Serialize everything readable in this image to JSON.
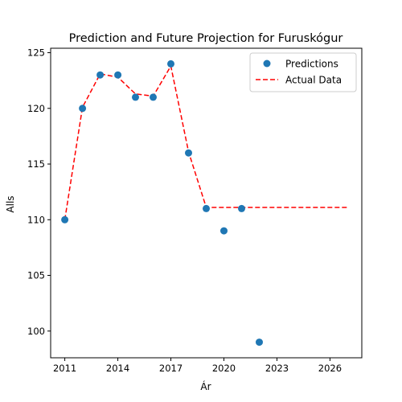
{
  "chart_data": {
    "type": "scatter",
    "title": "Prediction and Future Projection for Furuskógur",
    "xlabel": "Ár",
    "ylabel": "Alls",
    "xlim": [
      2010.2,
      2027.8
    ],
    "ylim": [
      97.6,
      125.4
    ],
    "xticks": [
      2011,
      2014,
      2017,
      2020,
      2023,
      2026
    ],
    "yticks": [
      100,
      105,
      110,
      115,
      120,
      125
    ],
    "grid": false,
    "legend_position": "top-right",
    "series": [
      {
        "name": "Predictions",
        "kind": "scatter",
        "color": "#1f77b4",
        "x": [
          2011,
          2012,
          2013,
          2014,
          2015,
          2016,
          2017,
          2018,
          2019,
          2020,
          2021,
          2022
        ],
        "y": [
          110,
          120,
          123,
          123,
          121,
          121,
          124,
          116,
          111,
          109,
          111,
          99
        ]
      },
      {
        "name": "Actual Data",
        "kind": "line",
        "style": "dashed",
        "color": "#ff0000",
        "x": [
          2011,
          2012,
          2013,
          2014,
          2015,
          2016,
          2017,
          2018,
          2019,
          2020,
          2021,
          2022,
          2023,
          2024,
          2025,
          2026,
          2027
        ],
        "y": [
          110,
          120.1,
          123.1,
          122.8,
          121.3,
          121.1,
          123.8,
          116.1,
          111.1,
          111.1,
          111.1,
          111.1,
          111.1,
          111.1,
          111.1,
          111.1,
          111.1
        ]
      }
    ]
  }
}
